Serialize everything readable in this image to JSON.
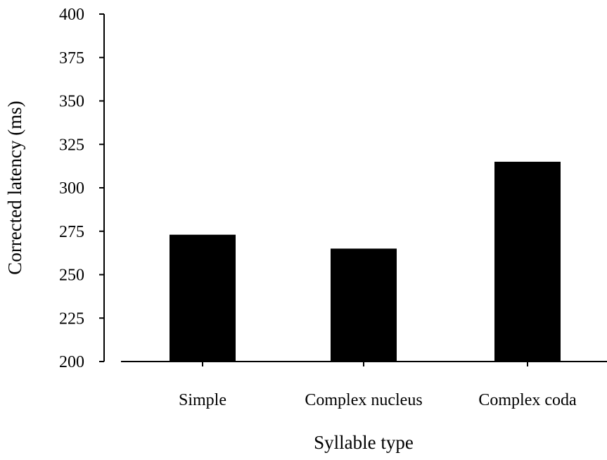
{
  "chart_data": {
    "type": "bar",
    "title": "",
    "xlabel": "Syllable type",
    "ylabel": "Corrected latency (ms)",
    "categories": [
      "Simple",
      "Complex nucleus",
      "Complex coda"
    ],
    "values": [
      273,
      265,
      315
    ],
    "ylim": [
      200,
      400
    ],
    "yticks": [
      200,
      225,
      250,
      275,
      300,
      325,
      350,
      375,
      400
    ],
    "grid": false,
    "legend": "none",
    "bar_color": "#000000",
    "axis_color": "#000000"
  }
}
